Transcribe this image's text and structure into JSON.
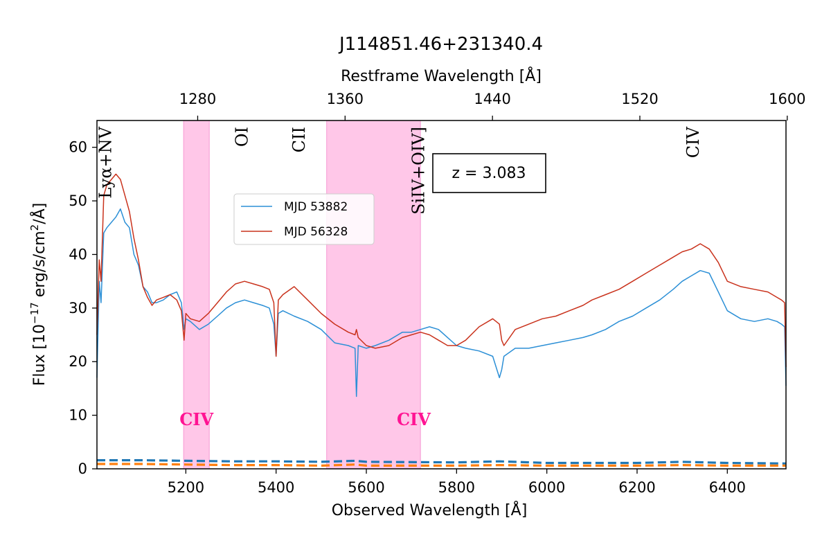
{
  "chart_data": {
    "type": "line",
    "title": "J114851.46+231340.4",
    "xlabel": "Observed Wavelength [Å]",
    "ylabel": "Flux [10",
    "ylabel_exp": "−17",
    "ylabel_tail": " erg/s/cm",
    "ylabel_sq": "2",
    "ylabel_end": "/Å]",
    "top_xlabel": "Restframe Wavelength [Å]",
    "redshift_label": "z = 3.083",
    "redshift": 3.083,
    "xlim": [
      5003,
      6530
    ],
    "ylim": [
      0,
      65
    ],
    "x_ticks": [
      5200,
      5400,
      5600,
      5800,
      6000,
      6200,
      6400
    ],
    "y_ticks": [
      0,
      10,
      20,
      30,
      40,
      50,
      60
    ],
    "top_ticks": [
      1280,
      1360,
      1440,
      1520,
      1600
    ],
    "legend_placement": "upper-left-center",
    "emission_lines": [
      {
        "label": "Lyα+NV",
        "rest": 1230
      },
      {
        "label": "OI",
        "rest": 1304
      },
      {
        "label": "CII",
        "rest": 1335
      },
      {
        "label": "SiIV+OIV]",
        "rest": 1400
      },
      {
        "label": "CIV",
        "rest": 1549
      }
    ],
    "absorption_bands": [
      {
        "label": "CIV",
        "x_range": [
          5195,
          5252
        ]
      },
      {
        "label": "CIV",
        "x_range": [
          5512,
          5720
        ]
      }
    ],
    "band_color": "#ff99d6",
    "label_color": "#ff1493",
    "series": [
      {
        "name": "MJD 53882",
        "color": "#2b8fd6",
        "x": [
          5003,
          5008,
          5012,
          5018,
          5025,
          5035,
          5045,
          5055,
          5065,
          5075,
          5085,
          5095,
          5105,
          5115,
          5125,
          5135,
          5150,
          5165,
          5180,
          5190,
          5196,
          5200,
          5210,
          5230,
          5250,
          5270,
          5290,
          5310,
          5330,
          5350,
          5370,
          5385,
          5395,
          5400,
          5405,
          5415,
          5440,
          5470,
          5500,
          5530,
          5560,
          5575,
          5578,
          5582,
          5600,
          5620,
          5650,
          5680,
          5700,
          5720,
          5740,
          5760,
          5780,
          5800,
          5820,
          5850,
          5880,
          5895,
          5900,
          5905,
          5930,
          5960,
          5990,
          6020,
          6050,
          6080,
          6100,
          6130,
          6160,
          6190,
          6220,
          6250,
          6280,
          6300,
          6320,
          6340,
          6360,
          6380,
          6400,
          6430,
          6460,
          6490,
          6510,
          6520,
          6527,
          6530
        ],
        "values": [
          17,
          35,
          31,
          44,
          45,
          46,
          47,
          48.5,
          46,
          45,
          40,
          38,
          34,
          33,
          31,
          31,
          31.5,
          32.5,
          33,
          31,
          26,
          28,
          27.5,
          26,
          27,
          28.5,
          30,
          31,
          31.5,
          31,
          30.5,
          30,
          27,
          21,
          29,
          29.5,
          28.5,
          27.5,
          26,
          23.5,
          23,
          22.5,
          13.5,
          23,
          22.5,
          23,
          24,
          25.5,
          25.5,
          26,
          26.5,
          26,
          24.5,
          23,
          22.5,
          22,
          21,
          17,
          18.5,
          21,
          22.5,
          22.5,
          23,
          23.5,
          24,
          24.5,
          25,
          26,
          27.5,
          28.5,
          30,
          31.5,
          33.5,
          35,
          36,
          37,
          36.5,
          33,
          29.5,
          28,
          27.5,
          28,
          27.5,
          27,
          26.5,
          15.5
        ]
      },
      {
        "name": "MJD 56328",
        "color": "#c9321c",
        "x": [
          5003,
          5008,
          5012,
          5018,
          5025,
          5035,
          5045,
          5055,
          5065,
          5075,
          5085,
          5095,
          5105,
          5115,
          5125,
          5135,
          5150,
          5165,
          5180,
          5190,
          5196,
          5200,
          5210,
          5230,
          5250,
          5270,
          5290,
          5310,
          5330,
          5350,
          5370,
          5385,
          5395,
          5400,
          5405,
          5415,
          5440,
          5470,
          5500,
          5530,
          5560,
          5575,
          5578,
          5582,
          5600,
          5620,
          5650,
          5680,
          5700,
          5720,
          5740,
          5760,
          5780,
          5800,
          5820,
          5850,
          5880,
          5895,
          5900,
          5905,
          5930,
          5960,
          5990,
          6020,
          6050,
          6080,
          6100,
          6130,
          6160,
          6190,
          6220,
          6250,
          6280,
          6300,
          6320,
          6340,
          6360,
          6380,
          6400,
          6430,
          6460,
          6490,
          6510,
          6520,
          6527,
          6530
        ],
        "values": [
          25,
          39,
          35,
          51,
          53,
          54,
          55,
          54,
          51,
          48,
          43,
          39,
          34,
          32,
          30.5,
          31.5,
          32,
          32.5,
          31.5,
          29.5,
          24,
          29,
          28,
          27.5,
          29,
          31,
          33,
          34.5,
          35,
          34.5,
          34,
          33.5,
          31,
          21,
          31.5,
          32.5,
          34,
          31.5,
          29,
          27,
          25.5,
          25,
          26,
          24.5,
          23,
          22.5,
          23,
          24.5,
          25,
          25.5,
          25,
          24,
          23,
          23,
          24,
          26.5,
          28,
          27,
          24,
          23,
          26,
          27,
          28,
          28.5,
          29.5,
          30.5,
          31.5,
          32.5,
          33.5,
          35,
          36.5,
          38,
          39.5,
          40.5,
          41,
          42,
          41,
          38.5,
          35,
          34,
          33.5,
          33,
          32,
          31.5,
          31,
          19
        ]
      },
      {
        "name": "",
        "role": "error-53882",
        "color": "#1f77b4",
        "dashed": true,
        "x": [
          5003,
          5100,
          5200,
          5300,
          5400,
          5500,
          5575,
          5600,
          5800,
          5895,
          6000,
          6200,
          6300,
          6400,
          6530
        ],
        "values": [
          1.6,
          1.6,
          1.5,
          1.4,
          1.4,
          1.3,
          1.5,
          1.3,
          1.2,
          1.4,
          1.1,
          1.1,
          1.3,
          1.1,
          1.0
        ]
      },
      {
        "name": "",
        "role": "error-56328",
        "color": "#ff7f0e",
        "dashed": true,
        "x": [
          5003,
          5100,
          5200,
          5300,
          5400,
          5500,
          5575,
          5600,
          5800,
          5895,
          6000,
          6200,
          6300,
          6400,
          6530
        ],
        "values": [
          0.9,
          0.9,
          0.8,
          0.7,
          0.7,
          0.6,
          0.8,
          0.6,
          0.6,
          0.7,
          0.6,
          0.6,
          0.7,
          0.6,
          0.6
        ]
      }
    ]
  }
}
